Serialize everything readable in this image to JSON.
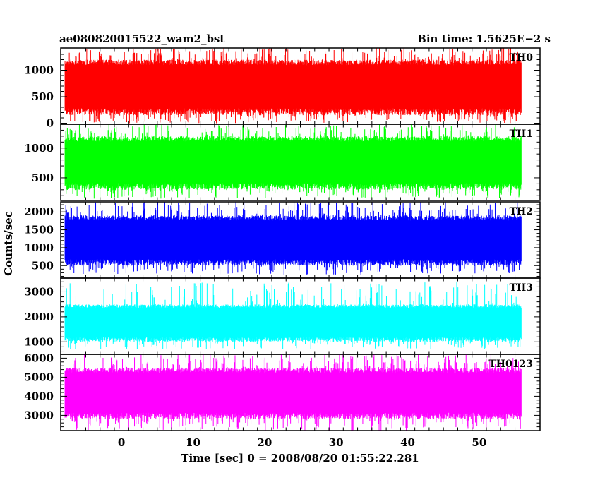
{
  "title_left": "ae080820015522_wam2_bst",
  "title_right": "Bin time: 1.5625E−2 s",
  "ylabel": "Counts/sec",
  "xlabel": "Time [sec] 0 = 2008/08/20 01:55:22.281",
  "chart_data": {
    "type": "line",
    "render_style": "dense light curve drawn as step histogram",
    "x_range": [
      -8.5,
      58.5
    ],
    "data_span": [
      -7.9,
      55.9
    ],
    "x_ticks": [
      0,
      10,
      20,
      30,
      40,
      50
    ],
    "x_tick_labels": [
      "0",
      "10",
      "20",
      "30",
      "40",
      "50"
    ],
    "bin_time_s": 0.015625,
    "xlabel": "Time [sec] 0 = 2008/08/20 01:55:22.281",
    "ylabel": "Counts/sec",
    "grid": false,
    "panels": [
      {
        "name": "TH0",
        "color": "#ff0000",
        "ylim": [
          -20,
          1420
        ],
        "y_ticks": [
          0,
          500,
          1000
        ],
        "y_tick_labels": [
          "0",
          "500",
          "1000"
        ],
        "typical_range": [
          150,
          1200
        ],
        "extreme_range": [
          0,
          1420
        ]
      },
      {
        "name": "TH1",
        "color": "#00ff00",
        "ylim": [
          120,
          1400
        ],
        "y_ticks": [
          500,
          1000
        ],
        "y_tick_labels": [
          "500",
          "1000"
        ],
        "typical_range": [
          300,
          1200
        ],
        "extreme_range": [
          150,
          1400
        ]
      },
      {
        "name": "TH2",
        "color": "#0000ff",
        "ylim": [
          150,
          2280
        ],
        "y_ticks": [
          500,
          1000,
          1500,
          2000
        ],
        "y_tick_labels": [
          "500",
          "1000",
          "1500",
          "2000"
        ],
        "typical_range": [
          500,
          1900
        ],
        "extreme_range": [
          250,
          2280
        ]
      },
      {
        "name": "TH3",
        "color": "#00ffff",
        "ylim": [
          500,
          3550
        ],
        "y_ticks": [
          1000,
          2000,
          3000
        ],
        "y_tick_labels": [
          "1000",
          "2000",
          "3000"
        ],
        "typical_range": [
          1000,
          2500
        ],
        "extreme_range": [
          700,
          3400
        ]
      },
      {
        "name": "TH0123",
        "color": "#ff00ff",
        "ylim": [
          2200,
          6200
        ],
        "y_ticks": [
          3000,
          4000,
          5000,
          6000
        ],
        "y_tick_labels": [
          "3000",
          "4000",
          "5000",
          "6000"
        ],
        "typical_range": [
          2800,
          5500
        ],
        "extreme_range": [
          2200,
          6200
        ]
      }
    ]
  }
}
